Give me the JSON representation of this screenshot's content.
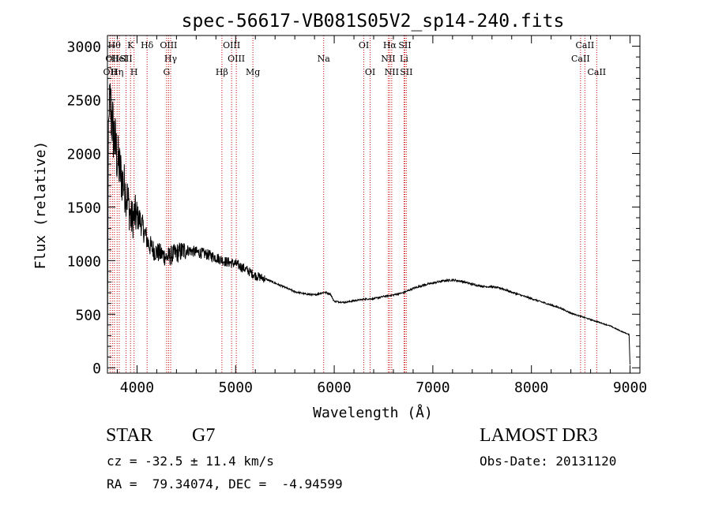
{
  "chart_data": {
    "type": "line",
    "title": "spec-56617-VB081S05V2_sp14-240.fits",
    "xlabel": "Wavelength (Å)",
    "ylabel": "Flux (relative)",
    "xlim": [
      3700,
      9100
    ],
    "ylim": [
      -50,
      3100
    ],
    "xticks": [
      4000,
      5000,
      6000,
      7000,
      8000,
      9000
    ],
    "yticks": [
      0,
      500,
      1000,
      1500,
      2000,
      2500,
      3000
    ],
    "line_color": "#cc0000",
    "spectrum_color": "#000000",
    "spectrum_anchors": [
      [
        3700,
        150
      ],
      [
        3710,
        2300
      ],
      [
        3730,
        2450
      ],
      [
        3760,
        2200
      ],
      [
        3800,
        1950
      ],
      [
        3850,
        1750
      ],
      [
        3900,
        1600
      ],
      [
        3940,
        1380
      ],
      [
        3980,
        1420
      ],
      [
        4030,
        1380
      ],
      [
        4080,
        1250
      ],
      [
        4120,
        1150
      ],
      [
        4180,
        1090
      ],
      [
        4250,
        1060
      ],
      [
        4300,
        1030
      ],
      [
        4400,
        1070
      ],
      [
        4500,
        1100
      ],
      [
        4600,
        1080
      ],
      [
        4700,
        1060
      ],
      [
        4800,
        1030
      ],
      [
        4900,
        990
      ],
      [
        5000,
        970
      ],
      [
        5100,
        920
      ],
      [
        5200,
        860
      ],
      [
        5300,
        830
      ],
      [
        5400,
        790
      ],
      [
        5500,
        750
      ],
      [
        5600,
        710
      ],
      [
        5700,
        690
      ],
      [
        5800,
        680
      ],
      [
        5900,
        705
      ],
      [
        5960,
        690
      ],
      [
        6000,
        620
      ],
      [
        6100,
        610
      ],
      [
        6200,
        625
      ],
      [
        6300,
        640
      ],
      [
        6400,
        645
      ],
      [
        6500,
        665
      ],
      [
        6600,
        680
      ],
      [
        6700,
        700
      ],
      [
        6800,
        740
      ],
      [
        6900,
        770
      ],
      [
        7000,
        790
      ],
      [
        7100,
        810
      ],
      [
        7200,
        820
      ],
      [
        7300,
        805
      ],
      [
        7400,
        780
      ],
      [
        7500,
        760
      ],
      [
        7600,
        755
      ],
      [
        7700,
        740
      ],
      [
        7800,
        705
      ],
      [
        7900,
        675
      ],
      [
        8000,
        645
      ],
      [
        8100,
        615
      ],
      [
        8200,
        585
      ],
      [
        8300,
        555
      ],
      [
        8400,
        510
      ],
      [
        8500,
        480
      ],
      [
        8600,
        450
      ],
      [
        8700,
        420
      ],
      [
        8800,
        390
      ],
      [
        8900,
        345
      ],
      [
        8990,
        310
      ],
      [
        9000,
        30
      ]
    ],
    "line_marks": [
      {
        "w": 3727,
        "label": "OII",
        "row": 2
      },
      {
        "w": 3750,
        "label": "OII",
        "row": 1
      },
      {
        "w": 3770,
        "label": "Hθ",
        "row": 0
      },
      {
        "w": 3798,
        "label": "Hη",
        "row": 2
      },
      {
        "w": 3820,
        "label": "HeI",
        "row": 1
      },
      {
        "w": 3889,
        "label": "SII",
        "row": 1
      },
      {
        "w": 3934,
        "label": "K",
        "row": 0
      },
      {
        "w": 3970,
        "label": "H",
        "row": 2
      },
      {
        "w": 4102,
        "label": "Hδ",
        "row": 0
      },
      {
        "w": 4300,
        "label": "G",
        "row": 2
      },
      {
        "w": 4320,
        "label": "OIII",
        "row": 0
      },
      {
        "w": 4341,
        "label": "Hγ",
        "row": 1
      },
      {
        "w": 4861,
        "label": "Hβ",
        "row": 2
      },
      {
        "w": 4959,
        "label": "OIII",
        "row": 0
      },
      {
        "w": 5007,
        "label": "OIII",
        "row": 1
      },
      {
        "w": 5175,
        "label": "Mg",
        "row": 2
      },
      {
        "w": 5893,
        "label": "Na",
        "row": 1
      },
      {
        "w": 6300,
        "label": "OI",
        "row": 0
      },
      {
        "w": 6364,
        "label": "OI",
        "row": 2
      },
      {
        "w": 6548,
        "label": "NII",
        "row": 1
      },
      {
        "w": 6563,
        "label": "Hα",
        "row": 0
      },
      {
        "w": 6583,
        "label": "NII",
        "row": 2
      },
      {
        "w": 6708,
        "label": "Li",
        "row": 1
      },
      {
        "w": 6716,
        "label": "SII",
        "row": 0
      },
      {
        "w": 6731,
        "label": "SII",
        "row": 2
      },
      {
        "w": 8498,
        "label": "CaII",
        "row": 1
      },
      {
        "w": 8542,
        "label": "CaII",
        "row": 0
      },
      {
        "w": 8662,
        "label": "CaII",
        "row": 2
      }
    ]
  },
  "info": {
    "object_class": "STAR",
    "subclass": "G7",
    "survey": "LAMOST DR3",
    "redshift_line": "cz = -32.5 ± 11.4 km/s",
    "obs_date_line": "Obs-Date: 20131120",
    "coords_line": "RA =  79.34074, DEC =  -4.94599"
  }
}
